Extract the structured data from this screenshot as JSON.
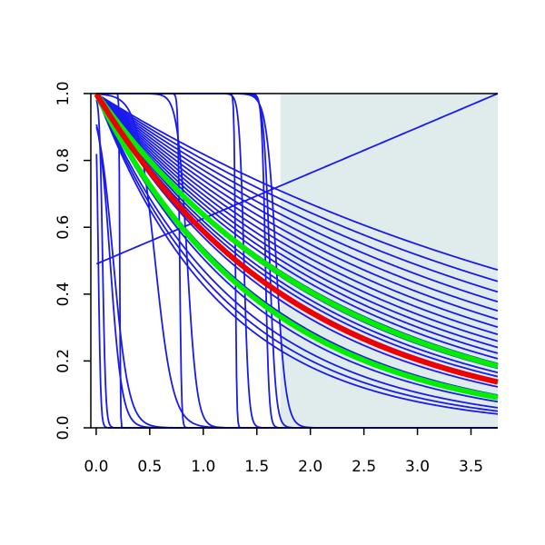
{
  "chart_data": {
    "type": "line",
    "title": "",
    "xlabel": "",
    "ylabel": "",
    "xlim": [
      -0.05,
      3.75
    ],
    "ylim": [
      0.0,
      1.0
    ],
    "x_ticks": [
      0.0,
      0.5,
      1.0,
      1.5,
      2.0,
      2.5,
      3.0,
      3.5
    ],
    "x_tick_labels": [
      "0.0",
      "0.5",
      "1.0",
      "1.5",
      "2.0",
      "2.5",
      "3.0",
      "3.5"
    ],
    "y_ticks": [
      0.0,
      0.2,
      0.4,
      0.6,
      0.8,
      1.0
    ],
    "y_tick_labels": [
      "0.0",
      "0.2",
      "0.4",
      "0.6",
      "0.8",
      "1.0"
    ],
    "grid": false,
    "shaded_region": {
      "x_from": 1.72,
      "x_to": 3.75,
      "color": "#e0ecec"
    },
    "colors": {
      "family": "#1a1aee",
      "highlight_red": "#ee0000",
      "highlight_green": "#00ee00"
    },
    "series": [
      {
        "kind": "exp",
        "rate": 0.2,
        "color": "#1a1aee"
      },
      {
        "kind": "exp",
        "rate": 0.22,
        "color": "#1a1aee"
      },
      {
        "kind": "exp",
        "rate": 0.24,
        "color": "#1a1aee"
      },
      {
        "kind": "exp",
        "rate": 0.26,
        "color": "#1a1aee"
      },
      {
        "kind": "exp",
        "rate": 0.28,
        "color": "#1a1aee"
      },
      {
        "kind": "exp",
        "rate": 0.3,
        "color": "#1a1aee"
      },
      {
        "kind": "exp",
        "rate": 0.32,
        "color": "#1a1aee"
      },
      {
        "kind": "exp",
        "rate": 0.34,
        "color": "#1a1aee"
      },
      {
        "kind": "exp",
        "rate": 0.36,
        "color": "#1a1aee"
      },
      {
        "kind": "exp",
        "rate": 0.38,
        "color": "#1a1aee"
      },
      {
        "kind": "exp",
        "rate": 0.4,
        "color": "#1a1aee"
      },
      {
        "kind": "exp",
        "rate": 0.42,
        "color": "#1a1aee"
      },
      {
        "kind": "exp",
        "rate": 0.44,
        "color": "#1a1aee"
      },
      {
        "kind": "exp",
        "rate": 0.46,
        "color": "#1a1aee"
      },
      {
        "kind": "exp",
        "rate": 0.48,
        "color": "#1a1aee"
      },
      {
        "kind": "exp",
        "rate": 0.5,
        "color": "#1a1aee"
      },
      {
        "kind": "exp",
        "rate": 0.52,
        "color": "#1a1aee"
      },
      {
        "kind": "exp",
        "rate": 0.56,
        "color": "#1a1aee"
      },
      {
        "kind": "exp",
        "rate": 0.62,
        "color": "#1a1aee"
      },
      {
        "kind": "exp",
        "rate": 0.68,
        "color": "#1a1aee"
      },
      {
        "kind": "exp",
        "rate": 0.75,
        "color": "#1a1aee"
      },
      {
        "kind": "exp",
        "rate": 0.8,
        "color": "#1a1aee"
      },
      {
        "kind": "exp",
        "rate": 0.85,
        "color": "#1a1aee"
      },
      {
        "kind": "linear",
        "start": 0.49,
        "end": 1.0,
        "color": "#1a1aee"
      },
      {
        "kind": "logistic",
        "mid": 0.02,
        "steep": 90,
        "color": "#1a1aee"
      },
      {
        "kind": "logistic",
        "mid": 0.06,
        "steep": 70,
        "color": "#1a1aee"
      },
      {
        "kind": "logistic",
        "mid": 0.13,
        "steep": 18,
        "color": "#1a1aee"
      },
      {
        "kind": "logistic",
        "mid": 0.16,
        "steep": 14,
        "color": "#1a1aee"
      },
      {
        "kind": "logistic",
        "mid": 0.22,
        "steep": 300,
        "color": "#1a1aee"
      },
      {
        "kind": "logistic",
        "mid": 0.55,
        "steep": 12,
        "color": "#1a1aee"
      },
      {
        "kind": "logistic",
        "mid": 0.78,
        "steep": 120,
        "color": "#1a1aee"
      },
      {
        "kind": "logistic",
        "mid": 0.85,
        "steep": 22,
        "color": "#1a1aee"
      },
      {
        "kind": "logistic",
        "mid": 1.3,
        "steep": 160,
        "color": "#1a1aee"
      },
      {
        "kind": "logistic",
        "mid": 1.38,
        "steep": 45,
        "color": "#1a1aee"
      },
      {
        "kind": "logistic",
        "mid": 1.58,
        "steep": 60,
        "color": "#1a1aee"
      },
      {
        "kind": "logistic",
        "mid": 1.62,
        "steep": 35,
        "color": "#1a1aee"
      },
      {
        "kind": "logistic",
        "mid": 1.68,
        "steep": 22,
        "color": "#1a1aee"
      },
      {
        "kind": "exp",
        "rate": 0.64,
        "color": "#00ee00",
        "highlight": true
      },
      {
        "kind": "exp",
        "rate": 0.45,
        "color": "#00ee00",
        "highlight": true
      },
      {
        "kind": "exp",
        "rate": 0.53,
        "color": "#ee0000",
        "highlight": true
      }
    ]
  }
}
